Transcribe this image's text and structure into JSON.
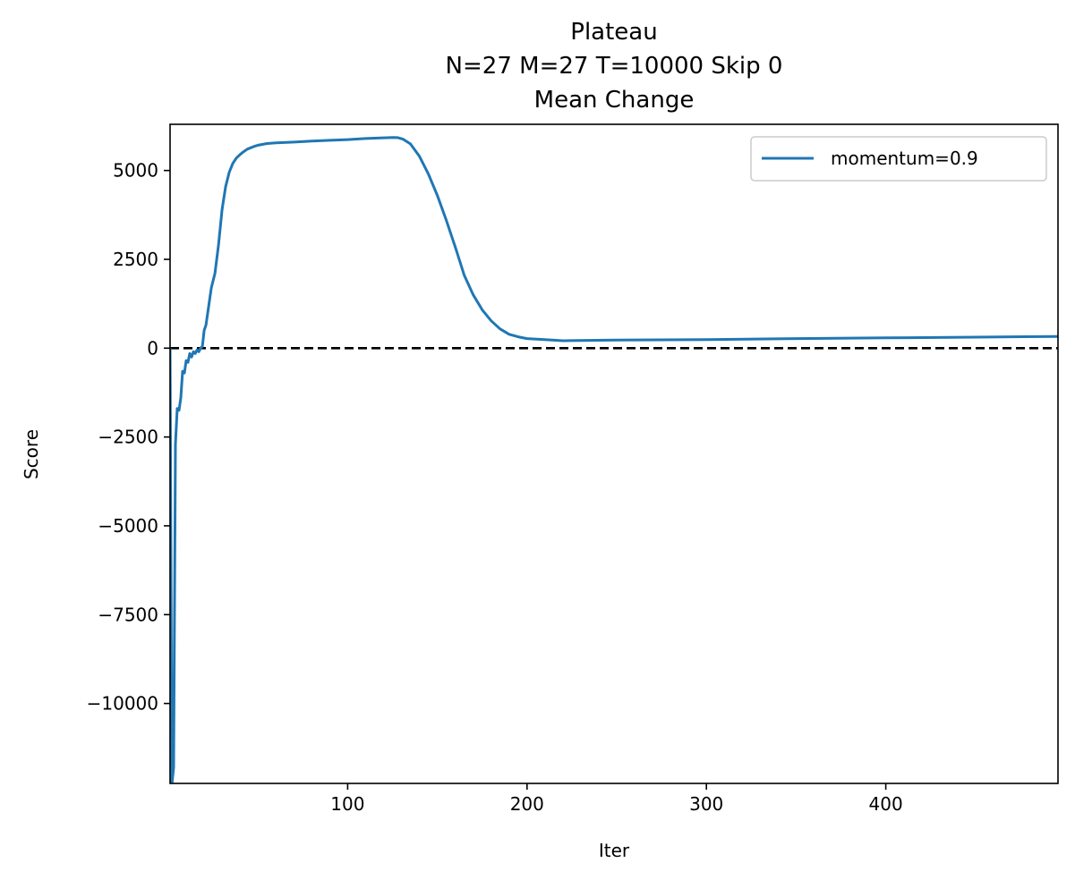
{
  "chart_data": {
    "type": "line",
    "title_lines": [
      "Plateau",
      "N=27 M=27 T=10000 Skip 0",
      "Mean Change"
    ],
    "xlabel": "Iter",
    "ylabel": "Score",
    "xlim": [
      1,
      496
    ],
    "ylim": [
      -12250,
      6300
    ],
    "xticks": [
      100,
      200,
      300,
      400
    ],
    "yticks": [
      5000,
      2500,
      0,
      -2500,
      -5000,
      -7500,
      -10000
    ],
    "ytick_labels": [
      "5000",
      "2500",
      "0",
      "−2500",
      "−5000",
      "−7500",
      "−10000"
    ],
    "grid": false,
    "legend_position": "top-right",
    "reference_line": {
      "y": 0,
      "style": "dashed",
      "color": "#000000"
    },
    "colors": {
      "series": "#1f77b4",
      "reference": "#000000",
      "axes": "#000000"
    },
    "series": [
      {
        "name": "momentum=0.9",
        "x": [
          1,
          2,
          3,
          4,
          5,
          6,
          7,
          8,
          9,
          10,
          11,
          12,
          13,
          14,
          15,
          16,
          17,
          18,
          19,
          20,
          21,
          22,
          24,
          26,
          28,
          30,
          32,
          34,
          36,
          38,
          40,
          42,
          44,
          46,
          48,
          50,
          55,
          60,
          70,
          80,
          90,
          100,
          110,
          120,
          125,
          128,
          131,
          135,
          140,
          145,
          150,
          155,
          160,
          165,
          170,
          175,
          180,
          185,
          190,
          195,
          200,
          210,
          220,
          250,
          300,
          350,
          400,
          450,
          496
        ],
        "y": [
          0,
          -12300,
          -11800,
          -2700,
          -1700,
          -1750,
          -1400,
          -650,
          -700,
          -350,
          -400,
          -150,
          -250,
          -100,
          -150,
          -50,
          -100,
          0,
          50,
          500,
          650,
          1000,
          1700,
          2100,
          2900,
          3900,
          4550,
          4950,
          5200,
          5350,
          5450,
          5530,
          5600,
          5640,
          5680,
          5710,
          5760,
          5780,
          5800,
          5830,
          5850,
          5870,
          5900,
          5920,
          5930,
          5925,
          5880,
          5750,
          5400,
          4900,
          4300,
          3600,
          2850,
          2050,
          1500,
          1080,
          770,
          540,
          390,
          320,
          270,
          240,
          210,
          230,
          240,
          270,
          290,
          310,
          330
        ]
      }
    ]
  }
}
